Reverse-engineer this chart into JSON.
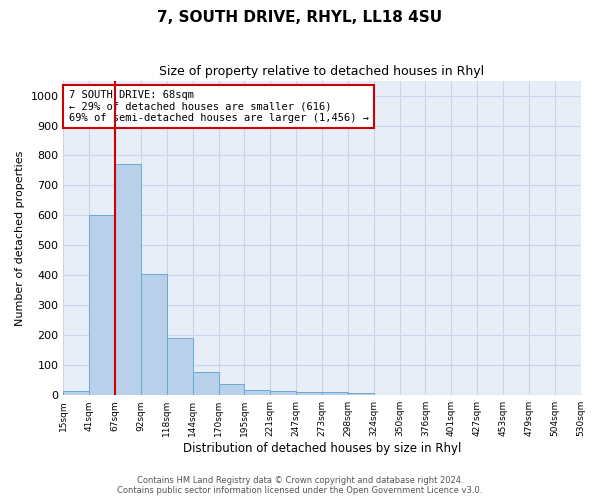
{
  "title": "7, SOUTH DRIVE, RHYL, LL18 4SU",
  "subtitle": "Size of property relative to detached houses in Rhyl",
  "xlabel": "Distribution of detached houses by size in Rhyl",
  "ylabel": "Number of detached properties",
  "bar_values": [
    15,
    600,
    770,
    405,
    190,
    78,
    38,
    18,
    15,
    12,
    12,
    8,
    0,
    0,
    0,
    0,
    0,
    0,
    0,
    0
  ],
  "tick_labels": [
    "15sqm",
    "41sqm",
    "67sqm",
    "92sqm",
    "118sqm",
    "144sqm",
    "170sqm",
    "195sqm",
    "221sqm",
    "247sqm",
    "273sqm",
    "298sqm",
    "324sqm",
    "350sqm",
    "376sqm",
    "401sqm",
    "427sqm",
    "453sqm",
    "479sqm",
    "504sqm",
    "530sqm"
  ],
  "bar_color": "#b8d0ea",
  "bar_edge_color": "#6aaad4",
  "vline_color": "#cc0000",
  "vline_pos": 2,
  "ylim": [
    0,
    1050
  ],
  "yticks": [
    0,
    100,
    200,
    300,
    400,
    500,
    600,
    700,
    800,
    900,
    1000
  ],
  "annotation_line1": "7 SOUTH DRIVE: 68sqm",
  "annotation_line2": "← 29% of detached houses are smaller (616)",
  "annotation_line3": "69% of semi-detached houses are larger (1,456) →",
  "annotation_box_color": "#ffffff",
  "annotation_box_edge": "#cc0000",
  "footer1": "Contains HM Land Registry data © Crown copyright and database right 2024.",
  "footer2": "Contains public sector information licensed under the Open Government Licence v3.0.",
  "grid_color": "#c8d4e8",
  "bg_color": "#e8eef8"
}
